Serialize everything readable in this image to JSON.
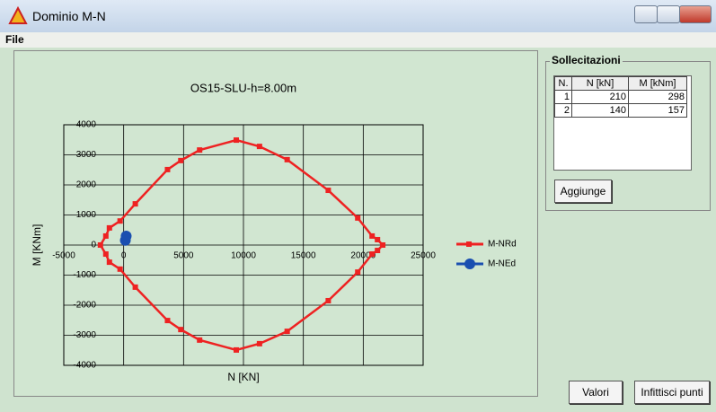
{
  "window": {
    "title": "Dominio M-N"
  },
  "menu": [
    "File"
  ],
  "chart_data": {
    "type": "line",
    "title": "OS15-SLU-h=8.00m",
    "x_label": "N [KN]",
    "y_label": "M [KNm]",
    "xlim": [
      -5000,
      25000
    ],
    "xticks": [
      -5000,
      0,
      5000,
      10000,
      15000,
      20000,
      25000
    ],
    "ylim": [
      -4000,
      4000
    ],
    "yticks": [
      -4000,
      -3000,
      -2000,
      -1000,
      0,
      1000,
      2000,
      3000,
      4000
    ],
    "grid": true,
    "legend": "right",
    "series": [
      {
        "name": "M-NRd",
        "color": "#ee2222",
        "marker": "square",
        "x": [
          -1940,
          -1490,
          -1190,
          -300,
          970,
          3660,
          4770,
          6340,
          9400,
          11340,
          13650,
          17080,
          19540,
          20740,
          21190,
          21630,
          21190,
          20740,
          19540,
          17080,
          13650,
          11340,
          9400,
          6340,
          4770,
          3660,
          970,
          -300,
          -1190,
          -1490
        ],
        "values": [
          0,
          300,
          570,
          800,
          1370,
          2510,
          2810,
          3160,
          3490,
          3280,
          2840,
          1820,
          900,
          300,
          180,
          0,
          -180,
          -300,
          -900,
          -1850,
          -2870,
          -3280,
          -3490,
          -3160,
          -2810,
          -2510,
          -1400,
          -800,
          -570,
          -300
        ]
      },
      {
        "name": "M-NEd",
        "color": "#1a4fb0",
        "marker": "circle",
        "x": [
          210,
          140
        ],
        "values": [
          298,
          157
        ]
      }
    ]
  },
  "panel": {
    "title": "Sollecitazioni",
    "table": {
      "header": [
        "N.",
        "N [kN]",
        "M [kNm]"
      ],
      "rows": [
        [
          "1",
          "210",
          "298"
        ],
        [
          "2",
          "140",
          "157"
        ]
      ]
    },
    "button": "Aggiunge"
  },
  "buttons": [
    "Valori",
    "Infittisci punti"
  ]
}
